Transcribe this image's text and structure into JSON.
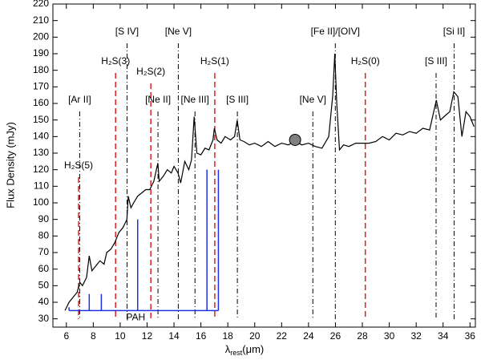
{
  "chart_data": {
    "type": "spectrum",
    "x_label": {
      "symbol": "λ",
      "subscript": "rest",
      "unit": "(μm)"
    },
    "y_label": "Flux Density (mJy)",
    "xlim": [
      5,
      36.4
    ],
    "ylim": [
      25,
      220
    ],
    "xticks": [
      6,
      8,
      10,
      12,
      14,
      16,
      18,
      20,
      22,
      24,
      26,
      28,
      30,
      32,
      34,
      36
    ],
    "yticks": [
      30,
      40,
      50,
      60,
      70,
      80,
      90,
      100,
      110,
      120,
      130,
      140,
      150,
      160,
      170,
      180,
      190,
      200,
      210,
      220
    ],
    "series": [
      {
        "color": "#000000",
        "x": [
          5.9,
          6.2,
          6.5,
          6.8,
          7.0,
          7.2,
          7.5,
          7.7,
          7.9,
          8.2,
          8.5,
          8.8,
          9.0,
          9.3,
          9.6,
          9.9,
          10.2,
          10.5,
          10.6,
          10.8,
          11.0,
          11.3,
          11.6,
          11.9,
          12.2,
          12.5,
          12.8,
          12.9,
          13.2,
          13.5,
          13.8,
          14.0,
          14.3,
          14.5,
          14.8,
          15.1,
          15.3,
          15.5,
          15.7,
          16.0,
          16.3,
          16.6,
          16.9,
          17.0,
          17.2,
          17.5,
          17.8,
          18.2,
          18.5,
          18.7,
          18.9,
          19.2,
          19.6,
          20.0,
          20.5,
          21.0,
          21.5,
          22.0,
          22.5,
          23.0,
          23.5,
          24.0,
          24.5,
          25.0,
          25.5,
          25.8,
          25.95,
          26.1,
          26.3,
          26.6,
          27.0,
          27.5,
          28.0,
          28.5,
          29.0,
          29.5,
          30.0,
          30.5,
          31.0,
          31.5,
          32.0,
          32.5,
          33.0,
          33.5,
          33.8,
          34.2,
          34.5,
          34.8,
          35.1,
          35.4,
          35.7,
          36.0,
          36.3
        ],
        "values": [
          35,
          40,
          43,
          46,
          52,
          50,
          55,
          68,
          59,
          62,
          65,
          63,
          70,
          72,
          76,
          82,
          85,
          90,
          104,
          97,
          100,
          104,
          106,
          108,
          108,
          113,
          124,
          113,
          116,
          120,
          118,
          122,
          118,
          112,
          125,
          120,
          126,
          152,
          130,
          129,
          133,
          132,
          138,
          145,
          138,
          136,
          140,
          138,
          140,
          150,
          138,
          137,
          135,
          136,
          134,
          137,
          134,
          136,
          135,
          137,
          135,
          136,
          134,
          133,
          140,
          165,
          190,
          160,
          132,
          135,
          134,
          136,
          136,
          136,
          137,
          140,
          138,
          142,
          141,
          143,
          142,
          145,
          144,
          162,
          150,
          153,
          155,
          167,
          164,
          140,
          155,
          152,
          146
        ]
      }
    ],
    "lines": [
      {
        "label": "H₂S(5)",
        "x": 6.91,
        "color": "#e02020"
      },
      {
        "label": "[Ar II]",
        "x": 6.99,
        "color": "#000000"
      },
      {
        "label": "H₂S(3)",
        "x": 9.66,
        "color": "#e02020"
      },
      {
        "label": "[S IV]",
        "x": 10.51,
        "color": "#000000"
      },
      {
        "label": "H₂S(2)",
        "x": 12.28,
        "color": "#e02020"
      },
      {
        "label": "[Ne II]",
        "x": 12.81,
        "color": "#000000"
      },
      {
        "label": "[Ne V]",
        "x": 14.32,
        "color": "#000000"
      },
      {
        "label": "[Ne III]",
        "x": 15.56,
        "color": "#000000"
      },
      {
        "label": "H₂S(1)",
        "x": 17.03,
        "color": "#e02020"
      },
      {
        "label": "[S III]",
        "x": 18.71,
        "color": "#000000"
      },
      {
        "label": "[Ne V]",
        "x": 24.32,
        "color": "#000000"
      },
      {
        "label": "[Fe II]/[OIV]",
        "x": 25.99,
        "color": "#000000"
      },
      {
        "label": "H₂S(0)",
        "x": 28.22,
        "color": "#e02020"
      },
      {
        "label": "[S III]",
        "x": 33.48,
        "color": "#000000"
      },
      {
        "label": "[Si II]",
        "x": 34.82,
        "color": "#000000"
      }
    ],
    "pah": {
      "label": "PAH",
      "color": "#2030e0",
      "baseline": 35,
      "x": [
        6.2,
        7.7,
        8.6,
        11.3,
        16.45,
        17.3
      ],
      "values": [
        37,
        45,
        45,
        90,
        120,
        120
      ]
    },
    "point": {
      "x": 23,
      "y": 138,
      "color": "#808080"
    }
  }
}
